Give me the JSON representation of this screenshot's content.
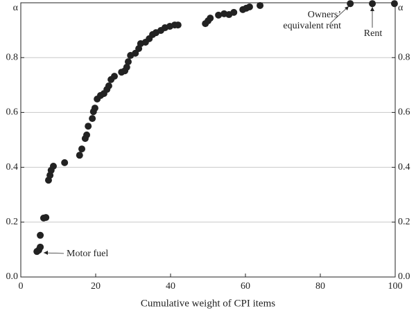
{
  "chart_data": {
    "type": "scatter",
    "x_label": "Cumulative weight of CPI items",
    "xlim": [
      0,
      100
    ],
    "xticks": [
      0,
      20,
      40,
      60,
      80,
      100
    ],
    "ylim": [
      0,
      1
    ],
    "yticks": [
      {
        "value": 0,
        "label": "0.0"
      },
      0.2,
      0.4,
      0.6,
      0.8,
      {
        "value": 1,
        "label": "α"
      }
    ],
    "grid": true,
    "color": "#222222",
    "x": [
      4.3,
      4.8,
      5.2,
      5.2,
      6.1,
      6.7,
      7.4,
      7.8,
      8.1,
      8.7,
      11.7,
      15.7,
      16.3,
      17.2,
      17.6,
      18.0,
      19.1,
      19.4,
      19.8,
      20.4,
      21.3,
      22.2,
      23.0,
      23.5,
      24.1,
      25.0,
      26.9,
      27.8,
      28.3,
      28.7,
      29.3,
      30.6,
      31.5,
      32.0,
      33.3,
      34.3,
      35.2,
      36.1,
      37.4,
      38.5,
      39.8,
      41.1,
      42.0,
      49.3,
      50.0,
      50.6,
      52.8,
      54.3,
      55.6,
      56.9,
      59.3,
      60.2,
      61.1,
      63.9,
      88.0,
      93.9,
      99.8
    ],
    "values": [
      0.093,
      0.098,
      0.109,
      0.152,
      0.215,
      0.217,
      0.353,
      0.371,
      0.389,
      0.404,
      0.417,
      0.444,
      0.467,
      0.505,
      0.518,
      0.55,
      0.578,
      0.603,
      0.616,
      0.649,
      0.662,
      0.669,
      0.684,
      0.697,
      0.72,
      0.732,
      0.747,
      0.752,
      0.765,
      0.785,
      0.808,
      0.816,
      0.833,
      0.851,
      0.856,
      0.869,
      0.884,
      0.891,
      0.899,
      0.909,
      0.914,
      0.919,
      0.919,
      0.924,
      0.934,
      0.944,
      0.955,
      0.96,
      0.957,
      0.965,
      0.975,
      0.98,
      0.985,
      0.99,
      0.997,
      0.997,
      0.997
    ],
    "annotations": [
      {
        "text": [
          "Motor fuel"
        ]
      },
      {
        "text": [
          "Owners’",
          "equivalent rent"
        ]
      },
      {
        "text": [
          "Rent"
        ]
      }
    ]
  }
}
